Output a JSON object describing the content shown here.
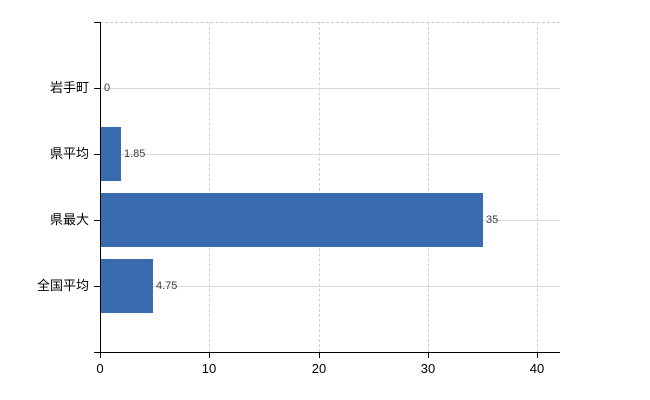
{
  "chart_data": {
    "type": "bar",
    "orientation": "horizontal",
    "title": "",
    "xlabel": "",
    "ylabel": "",
    "categories": [
      "岩手町",
      "県平均",
      "県最大",
      "全国平均"
    ],
    "values": [
      0,
      1.85,
      35,
      4.75
    ],
    "value_labels": [
      "0",
      "1.85",
      "35",
      "4.75"
    ],
    "x_ticks": [
      {
        "value": 0,
        "label": "0"
      },
      {
        "value": 10,
        "label": "10"
      },
      {
        "value": 20,
        "label": "20"
      },
      {
        "value": 30,
        "label": "30"
      },
      {
        "value": 40,
        "label": "40"
      }
    ],
    "xlim": [
      0,
      42.1
    ],
    "grid": true,
    "legend_position": "none",
    "colors": {
      "bar": "#3a6bae",
      "grid_horizontal": "#d7dcd7",
      "grid_vertical": "#d0d0d0",
      "plot_top_border": "#c9c9c9",
      "axis": "#000000",
      "category_text": "#000000",
      "value_text": "#3c3c3c",
      "tick_text": "#000000"
    }
  }
}
